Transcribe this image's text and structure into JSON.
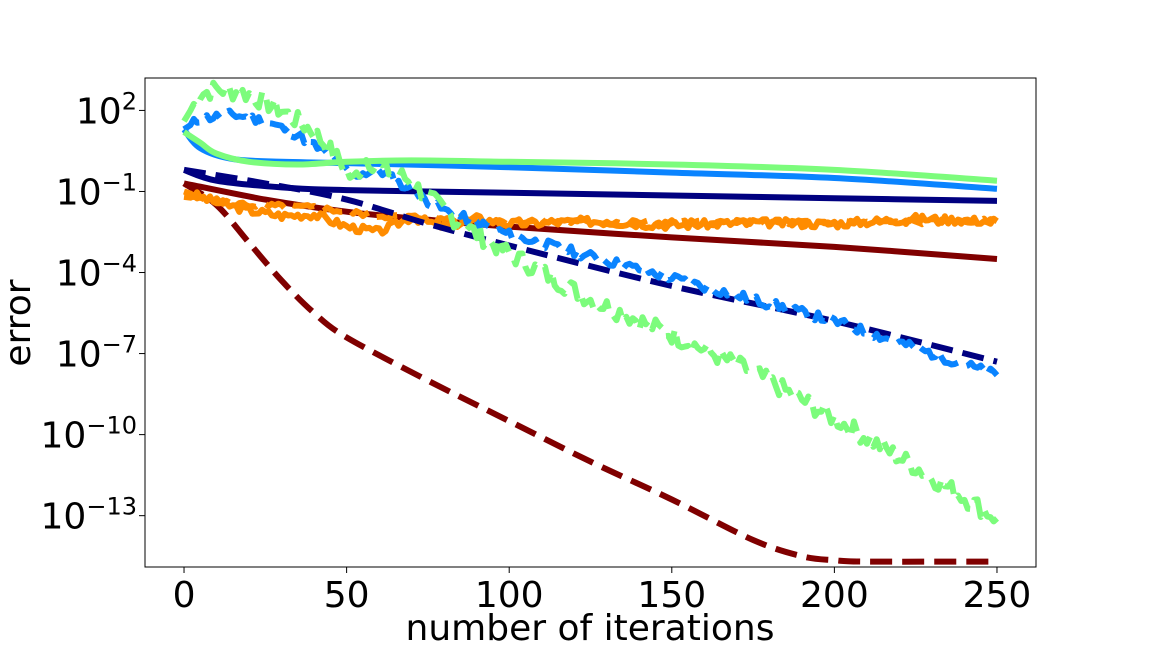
{
  "chart_data": {
    "type": "line",
    "title": "",
    "xlabel": "number of iterations",
    "ylabel": "error",
    "yscale": "log",
    "xlim": [
      -12,
      262
    ],
    "ylim_log10": [
      -14.9,
      3.2
    ],
    "xticks": [
      {
        "value": 0,
        "label": "0"
      },
      {
        "value": 50,
        "label": "50"
      },
      {
        "value": 100,
        "label": "100"
      },
      {
        "value": 150,
        "label": "150"
      },
      {
        "value": 200,
        "label": "200"
      },
      {
        "value": 250,
        "label": "250"
      }
    ],
    "yticks": [
      {
        "exp": 2,
        "base": "10",
        "power": "2"
      },
      {
        "exp": -1,
        "base": "10",
        "power": "−1"
      },
      {
        "exp": -4,
        "base": "10",
        "power": "−4"
      },
      {
        "exp": -7,
        "base": "10",
        "power": "−7"
      },
      {
        "exp": -10,
        "base": "10",
        "power": "−10"
      },
      {
        "exp": -13,
        "base": "10",
        "power": "−13"
      }
    ],
    "series": [
      {
        "name": "darkred-solid",
        "color": "#800000",
        "dash": "solid",
        "x": [
          0,
          25,
          50,
          75,
          100,
          150,
          200,
          250
        ],
        "log10y": [
          -0.7,
          -1.3,
          -1.75,
          -2.05,
          -2.3,
          -2.7,
          -3.05,
          -3.5
        ]
      },
      {
        "name": "darkred-dashed",
        "color": "#800000",
        "dash": "dashed",
        "x": [
          0,
          10,
          20,
          30,
          40,
          50,
          75,
          100,
          125,
          150,
          175,
          190,
          200,
          210,
          250
        ],
        "log10y": [
          -0.7,
          -1.5,
          -2.9,
          -4.3,
          -5.5,
          -6.4,
          -8.0,
          -9.5,
          -11.0,
          -12.4,
          -13.9,
          -14.5,
          -14.65,
          -14.7,
          -14.7
        ]
      },
      {
        "name": "orange-solid",
        "color": "#ff8c00",
        "dash": "solid",
        "x": [
          0,
          10,
          20,
          30,
          40,
          50,
          60,
          70,
          80,
          90,
          100,
          125,
          150,
          175,
          200,
          225,
          250
        ],
        "log10y": [
          -1.0,
          -1.4,
          -1.7,
          -1.9,
          -1.85,
          -2.3,
          -2.5,
          -1.95,
          -2.3,
          -2.0,
          -2.2,
          -2.1,
          -2.25,
          -2.15,
          -2.2,
          -2.0,
          -2.1
        ],
        "noise": 0.15,
        "seed": 3
      },
      {
        "name": "orange-dashed",
        "color": "#ff8c00",
        "dash": "dashed",
        "x": [
          0,
          20,
          40,
          60,
          80,
          100,
          150,
          200,
          250
        ],
        "log10y": [
          -1.2,
          -1.5,
          -1.6,
          -1.9,
          -2.0,
          -2.1,
          -2.15,
          -2.15,
          -2.1
        ],
        "noise": 0.1,
        "seed": 5
      },
      {
        "name": "navy-solid",
        "color": "#000080",
        "dash": "solid",
        "x": [
          0,
          10,
          30,
          50,
          100,
          150,
          200,
          250
        ],
        "log10y": [
          -0.2,
          -0.6,
          -0.85,
          -0.95,
          -1.05,
          -1.15,
          -1.25,
          -1.35
        ]
      },
      {
        "name": "navy-dashed",
        "color": "#000080",
        "dash": "dashed",
        "x": [
          0,
          25,
          50,
          75,
          100,
          150,
          200,
          250
        ],
        "log10y": [
          -0.2,
          -0.7,
          -1.3,
          -2.2,
          -3.0,
          -4.5,
          -5.8,
          -7.3
        ]
      },
      {
        "name": "blue-solid",
        "color": "#0a84ff",
        "dash": "solid",
        "x": [
          0,
          5,
          15,
          30,
          50,
          100,
          150,
          200,
          250
        ],
        "log10y": [
          1.3,
          0.6,
          0.2,
          0.1,
          0.05,
          -0.1,
          -0.3,
          -0.5,
          -0.9
        ]
      },
      {
        "name": "blue-dashed",
        "color": "#0a84ff",
        "dash": "dashed",
        "x": [
          0,
          5,
          15,
          25,
          35,
          45,
          52,
          60,
          70,
          80,
          100,
          125,
          150,
          175,
          200,
          225,
          250
        ],
        "log10y": [
          1.3,
          1.7,
          1.85,
          1.6,
          1.1,
          0.3,
          -0.4,
          -0.2,
          -1.0,
          -1.7,
          -2.6,
          -3.4,
          -4.2,
          -5.0,
          -5.8,
          -6.8,
          -7.8
        ],
        "noise": 0.18,
        "seed": 11
      },
      {
        "name": "green-solid",
        "color": "#7cfc7c",
        "dash": "solid",
        "x": [
          0,
          5,
          10,
          20,
          35,
          50,
          70,
          100,
          150,
          200,
          250
        ],
        "log10y": [
          1.2,
          0.8,
          0.4,
          0.1,
          0.0,
          0.1,
          0.15,
          0.1,
          0.0,
          -0.2,
          -0.6
        ]
      },
      {
        "name": "green-dashed",
        "color": "#7cfc7c",
        "dash": "dashed",
        "x": [
          0,
          5,
          10,
          20,
          30,
          40,
          48,
          52,
          56,
          62,
          68,
          75,
          85,
          100,
          125,
          150,
          175,
          200,
          225,
          250
        ],
        "log10y": [
          1.6,
          2.6,
          2.8,
          2.6,
          2.0,
          1.2,
          0.1,
          -0.6,
          0.2,
          -0.2,
          -0.5,
          -1.2,
          -2.2,
          -3.3,
          -5.0,
          -6.3,
          -7.7,
          -9.4,
          -11.2,
          -13.1
        ],
        "noise": 0.35,
        "seed": 7
      }
    ]
  }
}
